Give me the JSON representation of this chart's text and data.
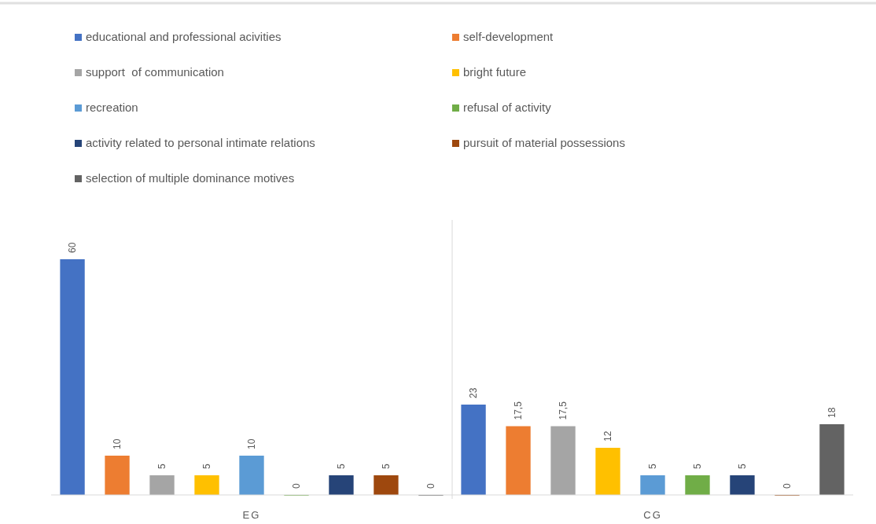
{
  "chart_data": {
    "type": "bar",
    "categories": [
      "EG",
      "CG"
    ],
    "legend": "top",
    "series": [
      {
        "name": "educational and professional acivities",
        "color": "#4472c4",
        "values": [
          60,
          23
        ],
        "value_labels": [
          "60",
          "23"
        ]
      },
      {
        "name": "self-development",
        "color": "#ed7d31",
        "values": [
          10,
          17.5
        ],
        "value_labels": [
          "10",
          "17,5"
        ]
      },
      {
        "name": "support  of communication",
        "color": "#a5a5a5",
        "values": [
          5,
          17.5
        ],
        "value_labels": [
          "5",
          "17,5"
        ]
      },
      {
        "name": "bright future",
        "color": "#ffc000",
        "values": [
          5,
          12
        ],
        "value_labels": [
          "5",
          "12"
        ]
      },
      {
        "name": "recreation",
        "color": "#5b9bd5",
        "values": [
          10,
          5
        ],
        "value_labels": [
          "10",
          "5"
        ]
      },
      {
        "name": "refusal of activity",
        "color": "#70ad47",
        "values": [
          0,
          5
        ],
        "value_labels": [
          "0",
          "5"
        ]
      },
      {
        "name": "activity related to personal intimate relations",
        "color": "#264478",
        "values": [
          5,
          5
        ],
        "value_labels": [
          "5",
          "5"
        ]
      },
      {
        "name": "pursuit of material possessions",
        "color": "#9e480e",
        "values": [
          5,
          0
        ],
        "value_labels": [
          "5",
          "0"
        ]
      },
      {
        "name": "selection of multiple dominance motives",
        "color": "#636363",
        "values": [
          0,
          18
        ],
        "value_labels": [
          "0",
          "18"
        ]
      }
    ]
  }
}
